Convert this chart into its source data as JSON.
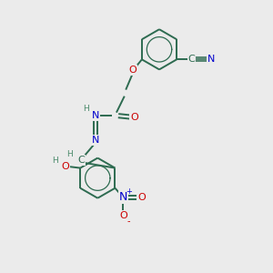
{
  "background_color": "#ebebeb",
  "bond_color": "#2d6b50",
  "N_color": "#0000cc",
  "O_color": "#cc0000",
  "C_color": "#2d6b50",
  "H_color": "#4a8a6a",
  "figsize": [
    3.0,
    3.0
  ],
  "dpi": 100,
  "xlim": [
    0,
    10
  ],
  "ylim": [
    0,
    10
  ]
}
